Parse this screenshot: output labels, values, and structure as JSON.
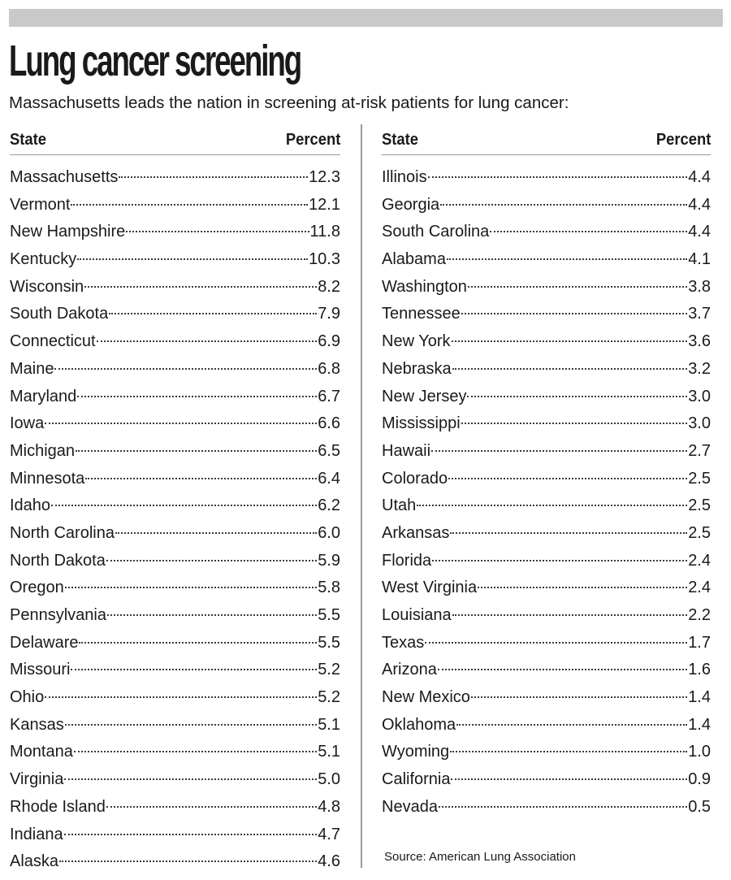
{
  "title": "Lung cancer screening",
  "subtitle": "Massachusetts leads the nation in screening at-risk patients for lung cancer:",
  "source": "Source: American Lung Association",
  "colors": {
    "top_bar": "#c9c9c9",
    "text": "#1a1a1a",
    "rule": "#9a9a9a"
  },
  "chart_data": {
    "type": "table",
    "title": "Lung cancer screening",
    "subtitle": "Massachusetts leads the nation in screening at-risk patients for lung cancer:",
    "columns": [
      "State",
      "Percent"
    ],
    "rows": [
      [
        "Massachusetts",
        "12.3"
      ],
      [
        "Vermont",
        "12.1"
      ],
      [
        "New Hampshire",
        "11.8"
      ],
      [
        "Kentucky",
        "10.3"
      ],
      [
        "Wisconsin",
        "8.2"
      ],
      [
        "South Dakota",
        "7.9"
      ],
      [
        "Connecticut",
        "6.9"
      ],
      [
        "Maine",
        "6.8"
      ],
      [
        "Maryland",
        "6.7"
      ],
      [
        "Iowa",
        "6.6"
      ],
      [
        "Michigan",
        "6.5"
      ],
      [
        "Minnesota",
        "6.4"
      ],
      [
        "Idaho",
        "6.2"
      ],
      [
        "North Carolina",
        "6.0"
      ],
      [
        "North Dakota",
        "5.9"
      ],
      [
        "Oregon",
        "5.8"
      ],
      [
        "Pennsylvania",
        "5.5"
      ],
      [
        "Delaware",
        "5.5"
      ],
      [
        "Missouri",
        "5.2"
      ],
      [
        "Ohio",
        "5.2"
      ],
      [
        "Kansas",
        "5.1"
      ],
      [
        "Montana",
        "5.1"
      ],
      [
        "Virginia",
        "5.0"
      ],
      [
        "Rhode Island",
        "4.8"
      ],
      [
        "Indiana",
        "4.7"
      ],
      [
        "Alaska",
        "4.6"
      ],
      [
        "Illinois",
        "4.4"
      ],
      [
        "Georgia",
        "4.4"
      ],
      [
        "South Carolina",
        "4.4"
      ],
      [
        "Alabama",
        "4.1"
      ],
      [
        "Washington",
        "3.8"
      ],
      [
        "Tennessee",
        "3.7"
      ],
      [
        "New York",
        "3.6"
      ],
      [
        "Nebraska",
        "3.2"
      ],
      [
        "New Jersey",
        "3.0"
      ],
      [
        "Mississippi",
        "3.0"
      ],
      [
        "Hawaii",
        "2.7"
      ],
      [
        "Colorado",
        "2.5"
      ],
      [
        "Utah",
        "2.5"
      ],
      [
        "Arkansas",
        "2.5"
      ],
      [
        "Florida",
        "2.4"
      ],
      [
        "West Virginia",
        "2.4"
      ],
      [
        "Louisiana",
        "2.2"
      ],
      [
        "Texas",
        "1.7"
      ],
      [
        "Arizona",
        "1.6"
      ],
      [
        "New Mexico",
        "1.4"
      ],
      [
        "Oklahoma",
        "1.4"
      ],
      [
        "Wyoming",
        "1.0"
      ],
      [
        "California",
        "0.9"
      ],
      [
        "Nevada",
        "0.5"
      ]
    ]
  }
}
